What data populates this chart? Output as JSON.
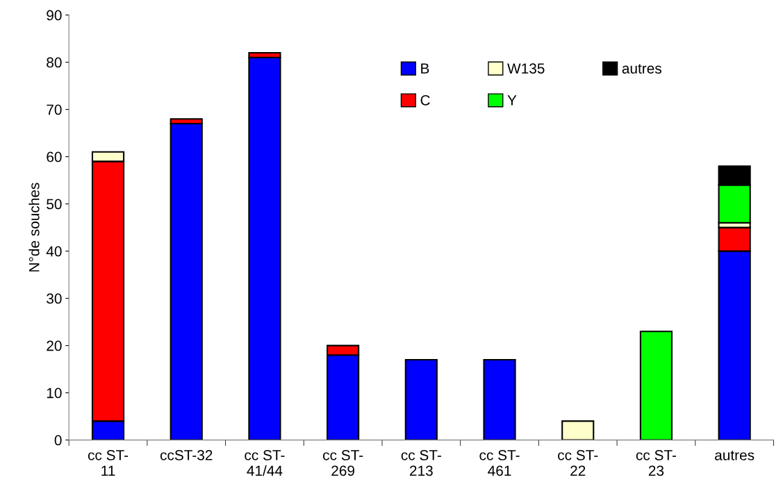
{
  "chart_data": {
    "type": "bar",
    "stacked": true,
    "ylabel": "N°de souches",
    "categories": [
      "cc ST-\n11",
      "ccST-32",
      "cc ST-\n41/44",
      "cc ST-\n269",
      "cc ST-\n213",
      "cc ST-\n461",
      "cc ST-\n22",
      "cc ST-\n23",
      "autres"
    ],
    "series": [
      {
        "name": "B",
        "color": "#0000ff",
        "values": [
          4,
          67,
          81,
          18,
          17,
          17,
          null,
          null,
          40
        ]
      },
      {
        "name": "C",
        "color": "#ff0000",
        "values": [
          55,
          1,
          1,
          2,
          null,
          null,
          null,
          null,
          5
        ]
      },
      {
        "name": "W135",
        "color": "#ffffcc",
        "values": [
          2,
          null,
          null,
          null,
          null,
          null,
          4,
          null,
          1
        ]
      },
      {
        "name": "Y",
        "color": "#00ff00",
        "values": [
          null,
          null,
          null,
          null,
          null,
          null,
          null,
          23,
          8
        ]
      },
      {
        "name": "autres",
        "color": "#000000",
        "values": [
          null,
          null,
          null,
          null,
          null,
          null,
          null,
          null,
          4
        ]
      }
    ],
    "ylim": [
      0,
      90
    ],
    "yticks": [
      0,
      10,
      20,
      30,
      40,
      50,
      60,
      70,
      80,
      90
    ],
    "grid": false,
    "legend": "top right"
  }
}
